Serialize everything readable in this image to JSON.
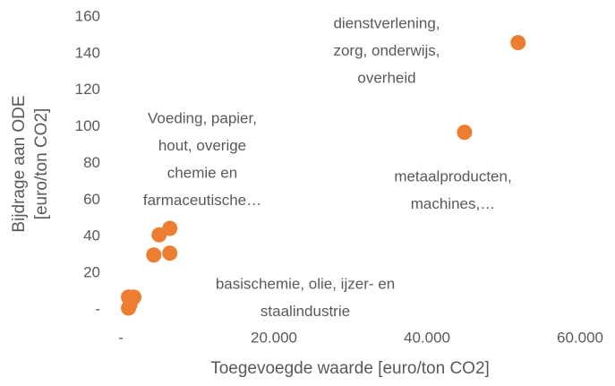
{
  "chart_data": {
    "type": "scatter",
    "xlabel": "Toegevoegde waarde [euro/ton CO2]",
    "ylabel": [
      "Bijdrage aan ODE",
      "[euro/ton CO2]"
    ],
    "color": "#ed7d31",
    "x": [
      1000,
      1200,
      1000,
      1700,
      4300,
      5000,
      6400,
      6400,
      44900,
      51900
    ],
    "values": [
      1,
      3,
      7,
      7,
      30,
      41,
      44.5,
      31,
      97,
      146
    ],
    "xlim": [
      0,
      60000
    ],
    "xticks": [
      {
        "value": 0,
        "label": "-"
      },
      {
        "value": 20000,
        "label": "20.000"
      },
      {
        "value": 40000,
        "label": "40.000"
      },
      {
        "value": 60000,
        "label": "60.000"
      }
    ],
    "ylim": [
      0,
      160
    ],
    "yticks": [
      {
        "value": 0,
        "label": "-"
      },
      20,
      40,
      60,
      80,
      100,
      120,
      140,
      160
    ],
    "annotations": [
      [
        "dienstverlening,",
        "zorg, onderwijs,",
        "overheid"
      ],
      [
        "Voeding, papier,",
        "hout, overige",
        "chemie en",
        "farmaceutische…"
      ],
      [
        "metaalproducten,",
        "machines,…"
      ],
      [
        "basischemie, olie, ijzer- en",
        "staalindustrie"
      ]
    ]
  }
}
